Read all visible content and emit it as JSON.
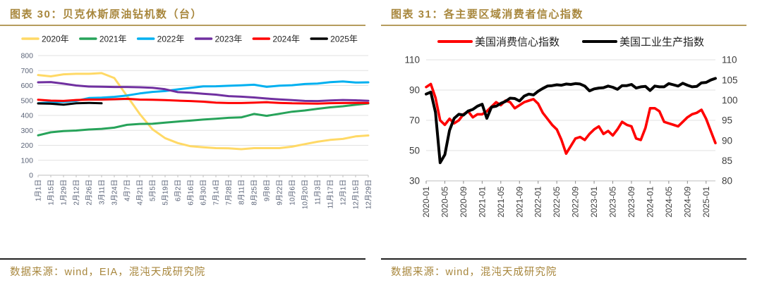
{
  "theme": {
    "gold_text": "#a8873d",
    "gold_rule": "#b59c5e",
    "dark_rule": "#212121",
    "grid_color": "#e2e2e2",
    "axis_line_color": "#bfbfbf",
    "axis_label_color_left_chart": "#5b6478",
    "axis_label_color_right_chart": "#3d3d3d",
    "legend_text_color": "#222222",
    "background": "#ffffff"
  },
  "charts": [
    {
      "title": "图表  30：贝克休斯原油钻机数（台）",
      "source": "数据来源：wind，EIA，混沌天成研究院",
      "chart_data": {
        "type": "line",
        "title": "贝克休斯原油钻机数（台）",
        "legend_position": "top",
        "grid": true,
        "ylim": [
          0,
          800
        ],
        "yticks": [
          0,
          100,
          200,
          300,
          400,
          500,
          600,
          700,
          800
        ],
        "x_labels": [
          "1月1日",
          "1月15日",
          "1月29日",
          "2月12日",
          "2月26日",
          "3月11日",
          "3月24日",
          "4月7日",
          "4月21日",
          "5月5日",
          "5月19日",
          "6月2日",
          "6月16日",
          "6月30日",
          "7月14日",
          "7月28日",
          "8月11日",
          "8月25日",
          "9月8日",
          "9月22日",
          "10月6日",
          "10月20日",
          "11月3日",
          "11月17日",
          "12月1日",
          "12月15日",
          "12月29日"
        ],
        "series": [
          {
            "name": "2020年",
            "color": "#FFD966",
            "values": [
              670,
              661,
              675,
              678,
              678,
              683,
              650,
              530,
              410,
              308,
              248,
              215,
              194,
              187,
              181,
              180,
              174,
              181,
              181,
              181,
              191,
              208,
              224,
              236,
              243,
              260,
              266
            ]
          },
          {
            "name": "2021年",
            "color": "#27A35A",
            "values": [
              267,
              287,
              295,
              299,
              306,
              310,
              318,
              337,
              343,
              344,
              352,
              359,
              365,
              372,
              378,
              384,
              387,
              410,
              397,
              411,
              425,
              433,
              444,
              454,
              461,
              471,
              480
            ]
          },
          {
            "name": "2022年",
            "color": "#00B0F0",
            "values": [
              481,
              488,
              491,
              497,
              516,
              519,
              524,
              533,
              547,
              557,
              563,
              574,
              584,
              594,
              595,
              598,
              601,
              605,
              591,
              599,
              602,
              610,
              613,
              622,
              627,
              620,
              621
            ]
          },
          {
            "name": "2023年",
            "color": "#7030A0",
            "values": [
              621,
              623,
              612,
              600,
              593,
              592,
              590,
              590,
              588,
              585,
              575,
              556,
              552,
              545,
              539,
              529,
              525,
              520,
              513,
              507,
              502,
              497,
              496,
              500,
              503,
              501,
              498
            ]
          },
          {
            "name": "2024年",
            "color": "#FF0000",
            "values": [
              505,
              499,
              497,
              503,
              506,
              506,
              508,
              511,
              506,
              505,
              502,
              499,
              496,
              492,
              485,
              483,
              483,
              485,
              488,
              484,
              481,
              480,
              479,
              482,
              483,
              484,
              483
            ]
          },
          {
            "name": "2025年",
            "color": "#000000",
            "values": [
              480,
              478,
              472,
              481,
              484,
              481
            ]
          }
        ]
      }
    },
    {
      "title": "图表  31：各主要区域消费者信心指数",
      "source": "数据来源：wind，混沌天成研究院",
      "chart_data": {
        "type": "line",
        "title": "各主要区域消费者信心指数",
        "legend_position": "top",
        "grid": true,
        "left_axis": {
          "min": 30,
          "max": 110,
          "ticks": [
            110,
            90,
            70,
            50,
            30
          ]
        },
        "right_axis": {
          "min": 80,
          "max": 110,
          "ticks": [
            110,
            105,
            100,
            95,
            90,
            85,
            80
          ]
        },
        "x_tick_labels": [
          "2020-01",
          "2020-05",
          "2020-09",
          "2021-01",
          "2021-05",
          "2021-09",
          "2022-01",
          "2022-05",
          "2022-09",
          "2023-01",
          "2023-05",
          "2023-09",
          "2024-01",
          "2024-05",
          "2024-09",
          "2025-01"
        ],
        "x_tick_every": 4,
        "series": [
          {
            "name": "美国消费信心指数",
            "color": "#FF0000",
            "axis": "left",
            "values": [
              92,
              94,
              85,
              70,
              67,
              71,
              68,
              70,
              74,
              76,
              72,
              74,
              74,
              76,
              79,
              82,
              80,
              83,
              82,
              78,
              80,
              82,
              83,
              84,
              81,
              75,
              71,
              67,
              64,
              57,
              48,
              53,
              58,
              59,
              57,
              61,
              64,
              66,
              61,
              63,
              60,
              64,
              69,
              67,
              66,
              58,
              57,
              65,
              78,
              78,
              76,
              69,
              68,
              67,
              66,
              69,
              72,
              74,
              75,
              77,
              71,
              63,
              55
            ]
          },
          {
            "name": "美国工业生产指数",
            "color": "#000000",
            "axis": "right",
            "values": [
              101.5,
              102,
              97,
              84.5,
              86.5,
              92.5,
              95.5,
              96.5,
              96.3,
              97.3,
              97.7,
              98.5,
              99,
              95.5,
              98.3,
              98.5,
              99.2,
              99.7,
              100.5,
              100.4,
              99.8,
              101,
              101.5,
              101.3,
              102.2,
              102.9,
              103.5,
              103.6,
              103.8,
              103.7,
              104,
              103.9,
              104.1,
              104,
              103.5,
              102.3,
              102.8,
              103,
              103.1,
              103.5,
              103.2,
              102.7,
              103.6,
              103.6,
              103.9,
              103,
              103.3,
              103.4,
              102.4,
              103.5,
              103.3,
              103.3,
              104.1,
              103.8,
              103.5,
              104.2,
              103.7,
              103.3,
              103.4,
              104.3,
              104.4,
              105,
              105.4
            ]
          }
        ]
      }
    }
  ]
}
